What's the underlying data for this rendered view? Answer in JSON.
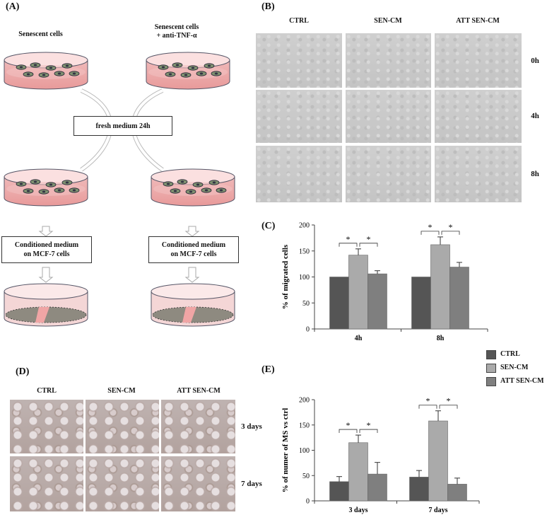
{
  "panelA": {
    "label": "(A)",
    "left_title": "Senescent cells",
    "right_title_1": "Senescent cells",
    "right_title_2": "+ anti-TNF-α",
    "fresh_medium": "fresh medium 24h",
    "cond_line1": "Conditioned medium",
    "cond_line2": "on MCF-7 cells"
  },
  "panelB": {
    "label": "(B)",
    "columns": [
      "CTRL",
      "SEN-CM",
      "ATT SEN-CM"
    ],
    "rows": [
      "0h",
      "4h",
      "8h"
    ]
  },
  "panelC": {
    "label": "(C)"
  },
  "panelD": {
    "label": "(D)",
    "columns": [
      "CTRL",
      "SEN-CM",
      "ATT SEN-CM"
    ],
    "rows": [
      "3 days",
      "7 days"
    ]
  },
  "panelE": {
    "label": "(E)"
  },
  "legend": {
    "items": [
      {
        "name": "CTRL",
        "color": "#555555"
      },
      {
        "name": "SEN-CM",
        "color": "#aaaaaa"
      },
      {
        "name": "ATT SEN-CM",
        "color": "#7f7f7f"
      }
    ]
  },
  "chart_data": [
    {
      "id": "C",
      "type": "bar",
      "categories": [
        "4h",
        "8h"
      ],
      "ylabel": "% of migrated cells",
      "ylim": [
        0,
        200
      ],
      "yticks": [
        0,
        50,
        100,
        150,
        200
      ],
      "series": [
        {
          "name": "CTRL",
          "values": [
            100,
            100
          ],
          "errors": [
            0,
            0
          ],
          "color": "#555555"
        },
        {
          "name": "SEN-CM",
          "values": [
            142,
            162
          ],
          "errors": [
            12,
            15
          ],
          "color": "#aaaaaa"
        },
        {
          "name": "ATT SEN-CM",
          "values": [
            106,
            119
          ],
          "errors": [
            6,
            9
          ],
          "color": "#7f7f7f"
        }
      ],
      "significance": "*"
    },
    {
      "id": "E",
      "type": "bar",
      "categories": [
        "3 days",
        "7 days"
      ],
      "ylabel": "% of numer of MS vs ctrl",
      "ylim": [
        0,
        200
      ],
      "yticks": [
        0,
        50,
        100,
        150,
        200
      ],
      "series": [
        {
          "name": "CTRL",
          "values": [
            38,
            47
          ],
          "errors": [
            10,
            13
          ],
          "color": "#555555"
        },
        {
          "name": "SEN-CM",
          "values": [
            115,
            158
          ],
          "errors": [
            15,
            20
          ],
          "color": "#aaaaaa"
        },
        {
          "name": "ATT SEN-CM",
          "values": [
            53,
            33
          ],
          "errors": [
            23,
            12
          ],
          "color": "#7f7f7f"
        }
      ],
      "significance": "*"
    }
  ]
}
